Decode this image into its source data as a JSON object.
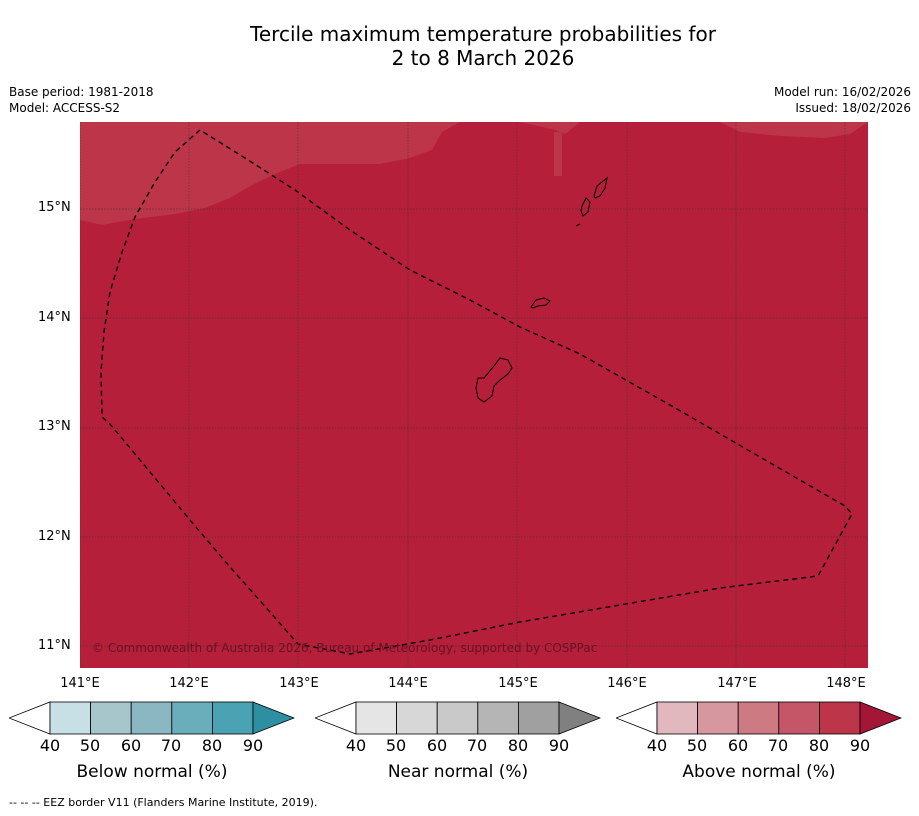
{
  "title": {
    "line1": "Tercile maximum temperature probabilities for",
    "line2": "2 to 8 March 2026"
  },
  "meta": {
    "base_period": "Base period: 1981-2018",
    "model": "Model: ACCESS-S2",
    "model_run": "Model run: 16/02/2026",
    "issued": "Issued: 18/02/2026"
  },
  "map": {
    "lat_labels": [
      "15°N",
      "14°N",
      "13°N",
      "12°N",
      "11°N"
    ],
    "lon_labels": [
      "141°E",
      "142°E",
      "143°E",
      "144°E",
      "145°E",
      "146°E",
      "147°E",
      "148°E"
    ],
    "copyright": "© Commonwealth of Australia 2026, Bureau of Meteorology, supported by COSPPac",
    "colors": {
      "above_80_90": "#b51f3a",
      "above_70_80": "#bc3549",
      "coastline": "#000000"
    }
  },
  "colorbars": [
    {
      "name": "below",
      "label": "Below normal (%)",
      "ticks": [
        "40",
        "50",
        "60",
        "70",
        "80",
        "90"
      ],
      "colors": [
        "#ffffff",
        "#c7e0e6",
        "#a7c6cb",
        "#8ab7c2",
        "#6aaebc",
        "#4aa2b3",
        "#2e8fa1"
      ]
    },
    {
      "name": "near",
      "label": "Near normal (%)",
      "ticks": [
        "40",
        "50",
        "60",
        "70",
        "80",
        "90"
      ],
      "colors": [
        "#ffffff",
        "#e5e5e5",
        "#d7d7d7",
        "#c9c9c9",
        "#b5b5b5",
        "#a0a0a0",
        "#808080"
      ]
    },
    {
      "name": "above",
      "label": "Above normal (%)",
      "ticks": [
        "40",
        "50",
        "60",
        "70",
        "80",
        "90"
      ],
      "colors": [
        "#ffffff",
        "#e1b8bd",
        "#d6979e",
        "#ce7a82",
        "#c55667",
        "#bc3549",
        "#a31635"
      ]
    }
  ],
  "footer": "--  --  -- EEZ border V11 (Flanders Marine Institute, 2019)."
}
